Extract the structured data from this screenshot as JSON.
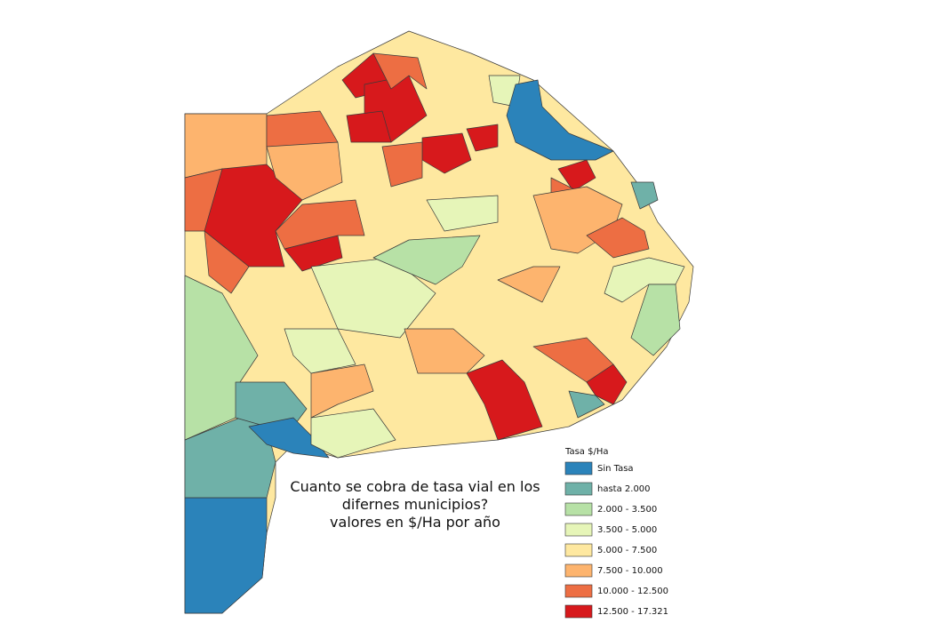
{
  "map": {
    "caption": [
      "Cuanto se cobra de tasa vial en los",
      "difernes municipios?",
      "valores en $/Ha por año"
    ],
    "legend": {
      "title": "Tasa $/Ha",
      "items": [
        {
          "label": "Sin Tasa",
          "color": "#2b83ba"
        },
        {
          "label": "hasta 2.000",
          "color": "#6fb1a8"
        },
        {
          "label": "2.000 - 3.500",
          "color": "#b7e1a6"
        },
        {
          "label": "3.500 - 5.000",
          "color": "#e6f5b8"
        },
        {
          "label": "5.000 - 7.500",
          "color": "#fee8a0"
        },
        {
          "label": "7.500 - 10.000",
          "color": "#fdb46e"
        },
        {
          "label": "10.000 - 12.500",
          "color": "#ed6e43"
        },
        {
          "label": "12.500 - 17.321",
          "color": "#d7191c"
        }
      ]
    }
  }
}
